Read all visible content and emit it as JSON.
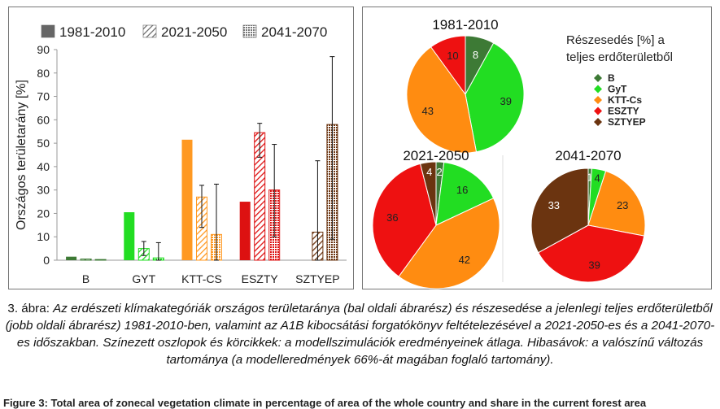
{
  "chart_data": [
    {
      "type": "bar",
      "ylabel": "Országos területarány [%]",
      "ylim": [
        0,
        90
      ],
      "yticks": [
        0,
        10,
        20,
        30,
        40,
        50,
        60,
        70,
        80,
        90
      ],
      "categories": [
        "B",
        "GYT",
        "KTT-CS",
        "ESZTY",
        "SZTYEP"
      ],
      "category_colors": [
        "#3d7a35",
        "#22dd22",
        "#ff9922",
        "#dd1111",
        "#6b3410"
      ],
      "series": [
        {
          "name": "1981-2010",
          "pattern": "solid",
          "values": [
            1.5,
            20.5,
            51.5,
            25,
            0
          ]
        },
        {
          "name": "2021-2050",
          "pattern": "hatch",
          "values": [
            0.5,
            5,
            27,
            54.5,
            12
          ]
        },
        {
          "name": "2041-2070",
          "pattern": "dots",
          "values": [
            0.3,
            1,
            11,
            30,
            58
          ]
        }
      ],
      "error_bars": [
        [
          [
            0,
            0
          ],
          [
            0,
            0
          ]
        ],
        [
          [
            2,
            8
          ],
          [
            0,
            7.5
          ]
        ],
        [
          [
            14,
            32
          ],
          [
            0,
            32.5
          ]
        ],
        [
          [
            44,
            58.5
          ],
          [
            10,
            49.5
          ]
        ],
        [
          [
            0,
            42.5
          ],
          [
            9,
            87
          ]
        ]
      ],
      "legend_position": "top"
    },
    {
      "type": "pie",
      "legend_title": "Részesedés [%] a teljes erdőterületből",
      "labels": [
        "B",
        "GyT",
        "KTT-Cs",
        "ESZTY",
        "SZTYEP"
      ],
      "colors": [
        "#3d7a35",
        "#22dd22",
        "#ff8c11",
        "#ee1111",
        "#6b3410"
      ],
      "pies": [
        {
          "title": "1981-2010",
          "values": [
            8,
            39,
            43,
            10,
            0
          ]
        },
        {
          "title": "2021-2050",
          "values": [
            2,
            16,
            42,
            36,
            4
          ]
        },
        {
          "title": "2041-2070",
          "values": [
            1,
            4,
            23,
            39,
            33
          ]
        }
      ]
    }
  ],
  "caption": {
    "lead": "3. ábra: ",
    "body": "Az erdészeti klímakategóriák országos területaránya (bal oldali ábrarész) és részesedése a jelenlegi teljes erdőterületből (jobb oldali ábrarész) 1981-2010-ben, valamint az A1B kibocsátási forgatókönyv feltételezésével a 2021-2050-es és a 2041-2070-es időszakban. Színezett oszlopok és körcikkek: a modellszimulációk eredményeinek átlaga. Hibasávok: a valószínű változás tartománya (a modelleredmények 66%-át magában foglaló tartomány)."
  },
  "footer": "Figure 3: Total area of zonecal vegetation climate in percentage of area of the whole country and share in the current forest area"
}
